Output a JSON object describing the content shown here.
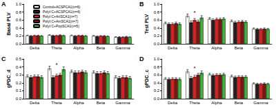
{
  "chart_data": [
    {
      "type": "bar",
      "panel": "A",
      "y_label": "Basal PLV",
      "legend": "top",
      "categories": [
        "Delta",
        "Theta",
        "Alpha",
        "Beta",
        "Gamma"
      ],
      "ylim": [
        0,
        1.0
      ],
      "yticks": [
        {
          "value": 0,
          "label": "0.0"
        },
        0.2,
        0.4,
        0.6,
        0.8,
        {
          "value": 1.0,
          "label": "1.0"
        }
      ],
      "series": [
        {
          "name": "Control+ACSPCA1(n=6)",
          "color": "#ffffff",
          "values": [
            0.21,
            0.22,
            0.21,
            0.2,
            0.17
          ],
          "errors": [
            0.01,
            0.01,
            0.01,
            0.01,
            0.01
          ]
        },
        {
          "name": "PolyI:C+ACSPCA1(n=4)",
          "color": "#222222",
          "values": [
            0.2,
            0.21,
            0.2,
            0.19,
            0.17
          ],
          "errors": [
            0.01,
            0.01,
            0.01,
            0.01,
            0.01
          ]
        },
        {
          "name": "PolyI:C+ArtSCA1(n=7)",
          "color": "#e02020",
          "values": [
            0.21,
            0.21,
            0.21,
            0.2,
            0.17
          ],
          "errors": [
            0.01,
            0.01,
            0.01,
            0.01,
            0.01
          ]
        },
        {
          "name": "PolyI:C+AmSCA1(n=7)",
          "color": "#8b1010",
          "values": [
            0.21,
            0.22,
            0.21,
            0.2,
            0.18
          ],
          "errors": [
            0.01,
            0.01,
            0.01,
            0.01,
            0.01
          ]
        },
        {
          "name": "PolyI:C+PopSCA1(n=5)",
          "color": "#3cb43c",
          "values": [
            0.2,
            0.21,
            0.2,
            0.19,
            0.17
          ],
          "errors": [
            0.01,
            0.01,
            0.01,
            0.01,
            0.01
          ]
        }
      ]
    },
    {
      "type": "bar",
      "panel": "B",
      "y_label": "Test PLV",
      "categories": [
        "Delta",
        "Theta",
        "Alpha",
        "Beta",
        "Gamma"
      ],
      "ylim": [
        0,
        1.0
      ],
      "yticks": [
        {
          "value": 0,
          "label": "0.0"
        },
        0.2,
        0.4,
        0.6,
        0.8,
        {
          "value": 1.0,
          "label": "1.0"
        }
      ],
      "annotations": [
        {
          "category": "Theta",
          "y": 0.78,
          "text": "*"
        }
      ],
      "series": [
        {
          "name": "Control+ACSPCA1(n=6)",
          "color": "#ffffff",
          "values": [
            0.52,
            0.7,
            0.63,
            0.57,
            0.38
          ],
          "errors": [
            0.03,
            0.05,
            0.03,
            0.03,
            0.02
          ]
        },
        {
          "name": "PolyI:C+ACSPCA1(n=4)",
          "color": "#222222",
          "values": [
            0.5,
            0.54,
            0.6,
            0.54,
            0.37
          ],
          "errors": [
            0.03,
            0.04,
            0.03,
            0.03,
            0.02
          ]
        },
        {
          "name": "PolyI:C+ArtSCA1(n=7)",
          "color": "#e02020",
          "values": [
            0.5,
            0.6,
            0.62,
            0.55,
            0.37
          ],
          "errors": [
            0.03,
            0.04,
            0.03,
            0.03,
            0.02
          ]
        },
        {
          "name": "PolyI:C+AmSCA1(n=7)",
          "color": "#8b1010",
          "values": [
            0.52,
            0.56,
            0.62,
            0.56,
            0.38
          ],
          "errors": [
            0.03,
            0.04,
            0.03,
            0.03,
            0.02
          ]
        },
        {
          "name": "PolyI:C+PopSCA1(n=5)",
          "color": "#3cb43c",
          "values": [
            0.5,
            0.66,
            0.63,
            0.55,
            0.37
          ],
          "errors": [
            0.03,
            0.05,
            0.03,
            0.03,
            0.02
          ]
        }
      ]
    },
    {
      "type": "bar",
      "panel": "C",
      "y_label": "gPDC_d",
      "categories": [
        "Delta",
        "Theta",
        "Alpha",
        "Beta",
        "Gamma"
      ],
      "ylim": [
        0,
        0.5
      ],
      "yticks": [
        {
          "value": 0,
          "label": "0.0"
        },
        0.1,
        0.2,
        0.3,
        0.4,
        0.5
      ],
      "annotations": [
        {
          "category": "Theta",
          "y": 0.43,
          "text": "*"
        }
      ],
      "series": [
        {
          "name": "Control+ACSPCA1(n=6)",
          "color": "#ffffff",
          "values": [
            0.28,
            0.38,
            0.34,
            0.33,
            0.27
          ],
          "errors": [
            0.02,
            0.03,
            0.02,
            0.02,
            0.02
          ]
        },
        {
          "name": "PolyI:C+ACSPCA1(n=4)",
          "color": "#222222",
          "values": [
            0.27,
            0.27,
            0.33,
            0.32,
            0.26
          ],
          "errors": [
            0.02,
            0.02,
            0.02,
            0.02,
            0.02
          ]
        },
        {
          "name": "PolyI:C+ArtSCA1(n=7)",
          "color": "#e02020",
          "values": [
            0.28,
            0.29,
            0.33,
            0.32,
            0.27
          ],
          "errors": [
            0.02,
            0.02,
            0.02,
            0.02,
            0.02
          ]
        },
        {
          "name": "PolyI:C+AmSCA1(n=7)",
          "color": "#8b1010",
          "values": [
            0.28,
            0.3,
            0.34,
            0.33,
            0.27
          ],
          "errors": [
            0.02,
            0.02,
            0.02,
            0.02,
            0.02
          ]
        },
        {
          "name": "PolyI:C+PopSCA1(n=5)",
          "color": "#3cb43c",
          "values": [
            0.27,
            0.37,
            0.33,
            0.32,
            0.26
          ],
          "errors": [
            0.02,
            0.03,
            0.02,
            0.02,
            0.02
          ]
        }
      ]
    },
    {
      "type": "bar",
      "panel": "D",
      "y_label": "gPDC_c",
      "categories": [
        "Delta",
        "Theta",
        "Alpha",
        "Beta",
        "Gamma"
      ],
      "ylim": [
        0,
        1.0
      ],
      "yticks": [
        {
          "value": 0,
          "label": "0.0"
        },
        0.2,
        0.4,
        0.6,
        0.8,
        {
          "value": 1.0,
          "label": "1.0"
        }
      ],
      "annotations": [
        {
          "category": "Theta",
          "y": 0.76,
          "text": "*"
        }
      ],
      "series": [
        {
          "name": "Control+ACSPCA1(n=6)",
          "color": "#ffffff",
          "values": [
            0.5,
            0.68,
            0.61,
            0.56,
            0.38
          ],
          "errors": [
            0.03,
            0.05,
            0.03,
            0.03,
            0.02
          ]
        },
        {
          "name": "PolyI:C+ACSPCA1(n=4)",
          "color": "#222222",
          "values": [
            0.49,
            0.52,
            0.59,
            0.54,
            0.37
          ],
          "errors": [
            0.03,
            0.04,
            0.03,
            0.03,
            0.02
          ]
        },
        {
          "name": "PolyI:C+ArtSCA1(n=7)",
          "color": "#e02020",
          "values": [
            0.5,
            0.55,
            0.6,
            0.55,
            0.37
          ],
          "errors": [
            0.03,
            0.04,
            0.03,
            0.03,
            0.02
          ]
        },
        {
          "name": "PolyI:C+AmSCA1(n=7)",
          "color": "#8b1010",
          "values": [
            0.5,
            0.6,
            0.6,
            0.55,
            0.38
          ],
          "errors": [
            0.03,
            0.04,
            0.03,
            0.03,
            0.02
          ]
        },
        {
          "name": "PolyI:C+PopSCA1(n=5)",
          "color": "#3cb43c",
          "values": [
            0.49,
            0.65,
            0.61,
            0.55,
            0.37
          ],
          "errors": [
            0.03,
            0.05,
            0.03,
            0.03,
            0.02
          ]
        }
      ]
    }
  ]
}
